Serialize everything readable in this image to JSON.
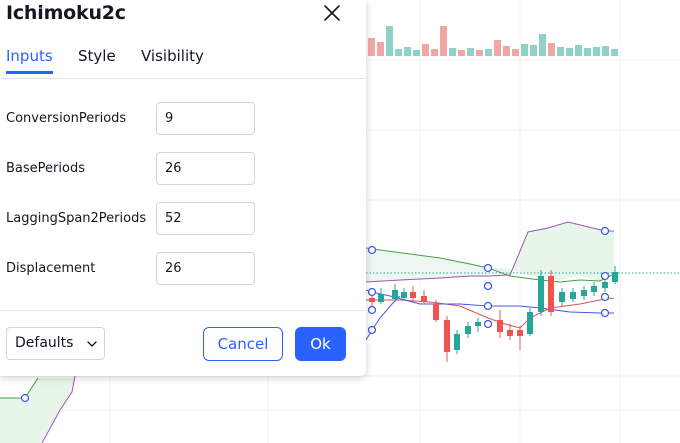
{
  "dialog": {
    "title": "Ichimoku2c",
    "close_icon": "close-icon",
    "tabs": [
      {
        "label": "Inputs",
        "active": true
      },
      {
        "label": "Style",
        "active": false
      },
      {
        "label": "Visibility",
        "active": false
      }
    ],
    "inputs": [
      {
        "label": "ConversionPeriods",
        "value": "9"
      },
      {
        "label": "BasePeriods",
        "value": "26"
      },
      {
        "label": "LaggingSpan2Periods",
        "value": "52"
      },
      {
        "label": "Displacement",
        "value": "26"
      }
    ],
    "footer": {
      "defaults_label": "Defaults",
      "defaults_icon": "chevron-down-icon",
      "cancel_label": "Cancel",
      "ok_label": "Ok"
    }
  },
  "colors": {
    "accent": "#2962ff",
    "bull": "#26a69a",
    "bear": "#ef5350",
    "volume_bull": "#8fd3c8",
    "volume_bear": "#f3a7a5",
    "cloud_fill": "#e8f5e9",
    "span_a": "#43a047",
    "span_b": "#9c55b8",
    "base_line": "#e05252",
    "lagging_line": "#4358e8"
  }
}
